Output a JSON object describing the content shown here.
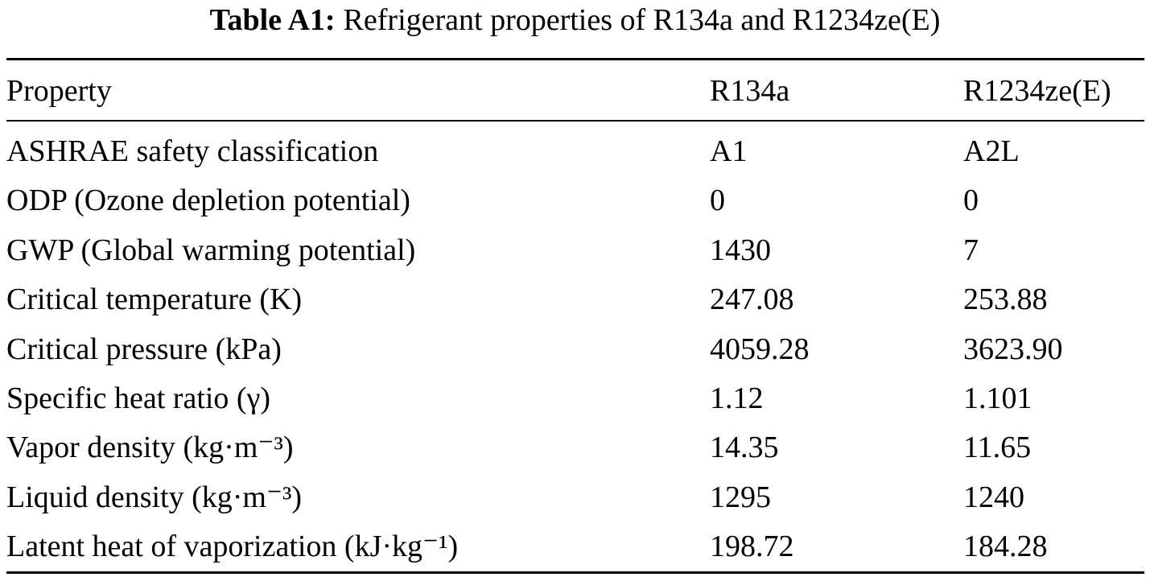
{
  "table": {
    "label": "Table A1:",
    "caption": "Refrigerant properties of R134a and R1234ze(E)",
    "headers": [
      "Property",
      "R134a",
      "R1234ze(E)"
    ],
    "rows": [
      [
        "ASHRAE safety classification",
        "A1",
        "A2L"
      ],
      [
        "ODP (Ozone depletion potential)",
        "0",
        "0"
      ],
      [
        "GWP (Global warming potential)",
        "1430",
        "7"
      ],
      [
        "Critical temperature (K)",
        "247.08",
        "253.88"
      ],
      [
        "Critical pressure (kPa)",
        "4059.28",
        "3623.90"
      ],
      [
        "Specific heat ratio (γ)",
        "1.12",
        "1.101"
      ],
      [
        "Vapor density (kg·m⁻³)",
        "14.35",
        "11.65"
      ],
      [
        "Liquid density (kg·m⁻³)",
        "1295",
        "1240"
      ],
      [
        "Latent heat of vaporization (kJ·kg⁻¹)",
        "198.72",
        "184.28"
      ]
    ]
  }
}
